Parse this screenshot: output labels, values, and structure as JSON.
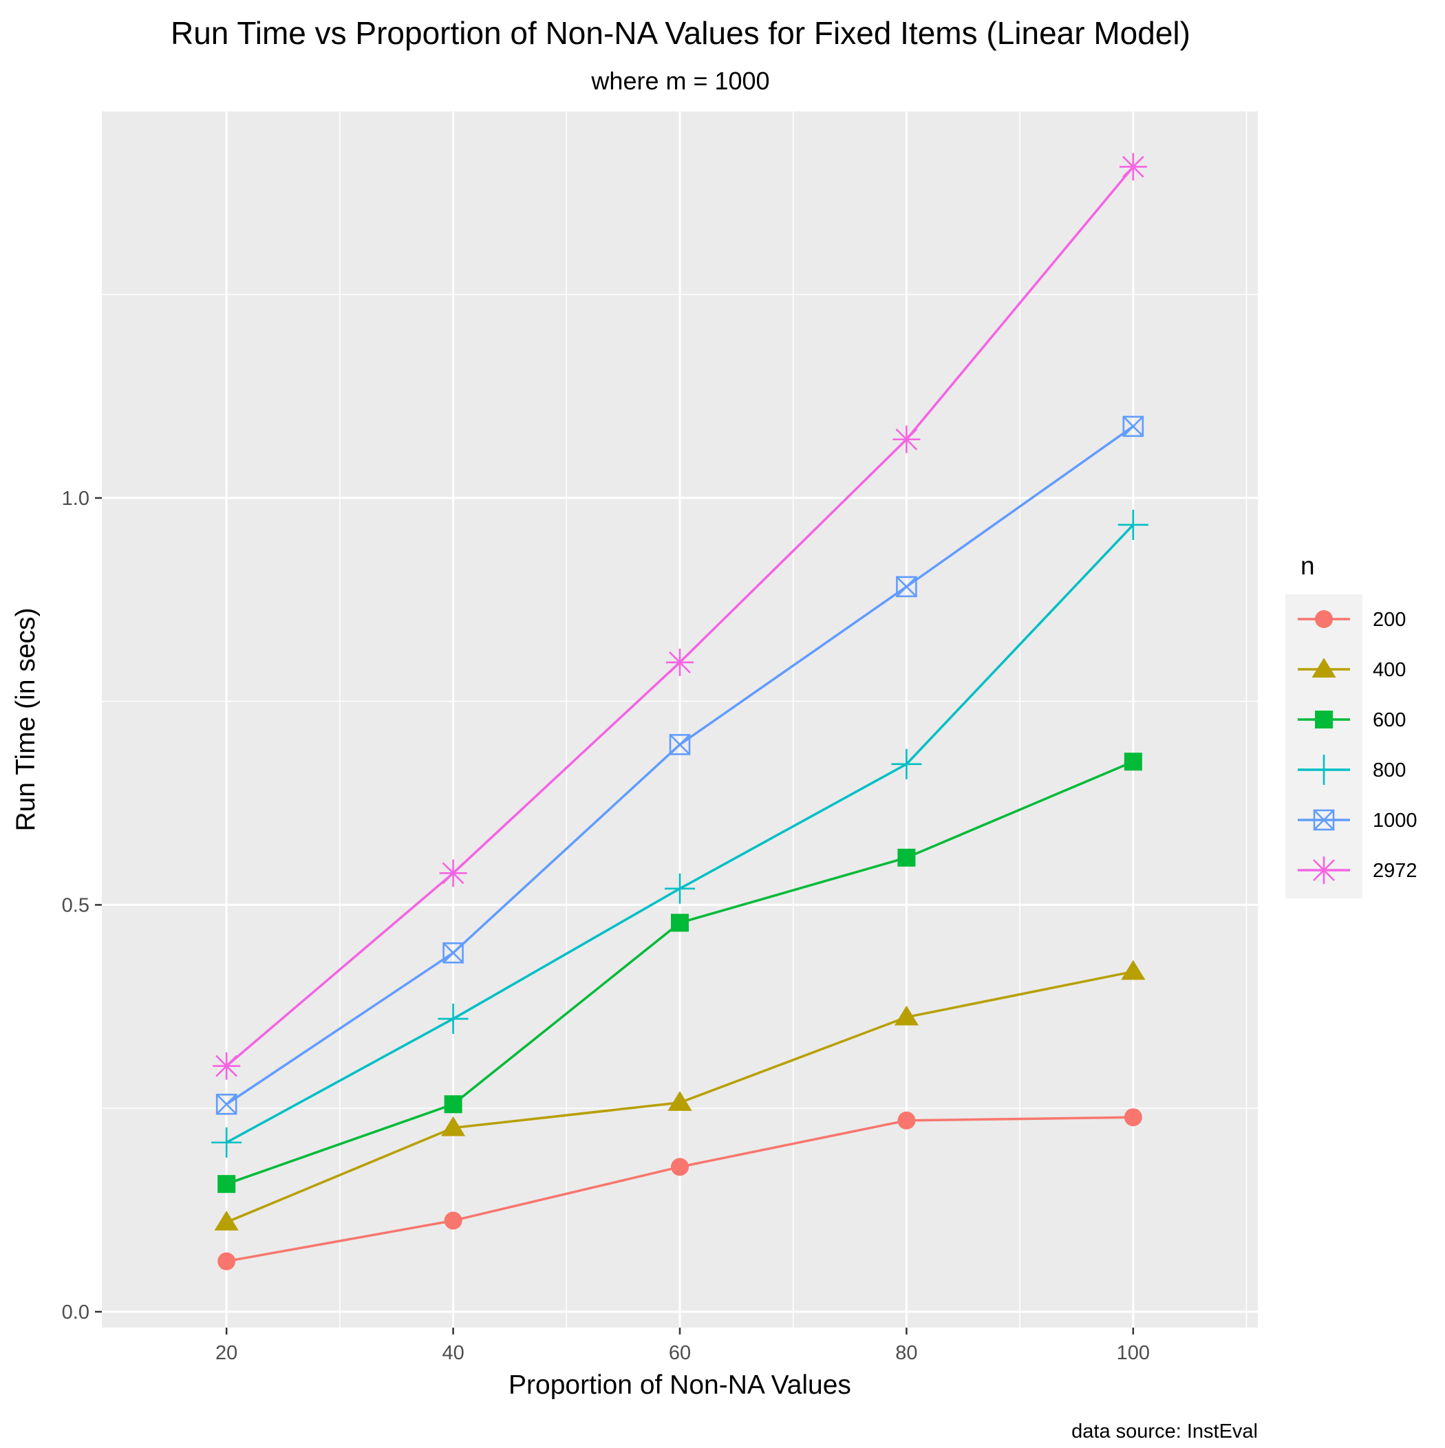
{
  "chart_data": {
    "type": "line",
    "title": "Run Time vs Proportion of Non-NA Values for Fixed Items (Linear Model)",
    "subtitle": "where m = 1000",
    "xlabel": "Proportion of Non-NA Values",
    "ylabel": "Run Time (in secs)",
    "caption": "data source: InstEval",
    "xlim": [
      9,
      111
    ],
    "ylim": [
      -0.0195,
      1.475
    ],
    "x_ticks": [
      20,
      40,
      60,
      80,
      100
    ],
    "x_tick_labels": [
      "20",
      "40",
      "60",
      "80",
      "100"
    ],
    "y_ticks": [
      0.0,
      0.5,
      1.0
    ],
    "y_tick_labels": [
      "0.0",
      "0.5",
      "1.0"
    ],
    "y_minor_ticks": [
      0.25,
      0.75,
      1.25
    ],
    "x_minor_ticks": [
      30,
      50,
      70,
      90,
      110
    ],
    "grid": true,
    "legend": {
      "title": "n",
      "position": "right"
    },
    "x": [
      20,
      40,
      60,
      80,
      100
    ],
    "series": [
      {
        "name": "200",
        "color": "#F8766D",
        "shape": "circle",
        "values": [
          0.062,
          0.112,
          0.178,
          0.235,
          0.239
        ]
      },
      {
        "name": "400",
        "color": "#B79F00",
        "shape": "triangle",
        "values": [
          0.11,
          0.226,
          0.257,
          0.362,
          0.418
        ]
      },
      {
        "name": "600",
        "color": "#00BA38",
        "shape": "square",
        "values": [
          0.157,
          0.255,
          0.478,
          0.558,
          0.676
        ]
      },
      {
        "name": "800",
        "color": "#00BFC4",
        "shape": "plus",
        "values": [
          0.208,
          0.36,
          0.52,
          0.673,
          0.967
        ]
      },
      {
        "name": "1000",
        "color": "#619CFF",
        "shape": "boxx",
        "values": [
          0.255,
          0.441,
          0.697,
          0.891,
          1.088
        ]
      },
      {
        "name": "2972",
        "color": "#F564E3",
        "shape": "asterisk",
        "values": [
          0.302,
          0.539,
          0.798,
          1.072,
          1.407
        ]
      }
    ]
  }
}
